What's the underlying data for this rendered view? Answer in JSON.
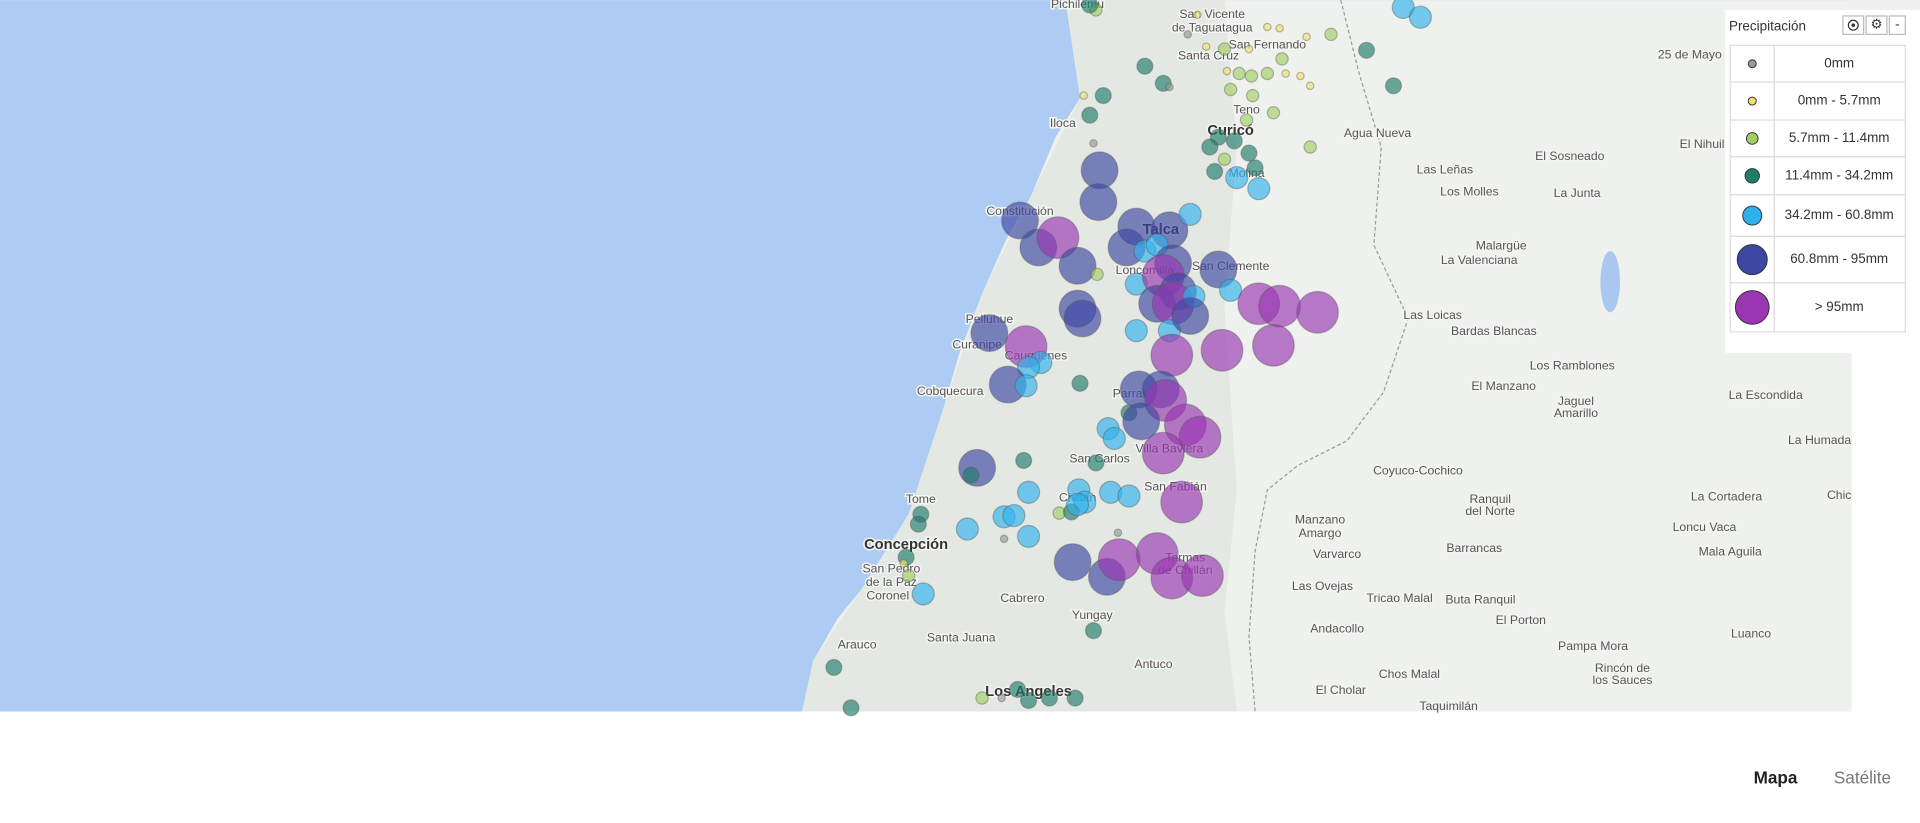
{
  "legend": {
    "title": "Precipitación",
    "collapse": "-",
    "items": [
      {
        "label": "0mm",
        "color": "#9a9a9a"
      },
      {
        "label": "0mm - 5.7mm",
        "color": "#f2e26b"
      },
      {
        "label": "5.7mm - 11.4mm",
        "color": "#a3cf62"
      },
      {
        "label": "11.4mm - 34.2mm",
        "color": "#1f7d6c"
      },
      {
        "label": "34.2mm - 60.8mm",
        "color": "#2fb2ec"
      },
      {
        "label": "60.8mm - 95mm",
        "color": "#3d47a3"
      },
      {
        "label": "> 95mm",
        "color": "#9a36b2"
      }
    ]
  },
  "map_types": [
    "Mapa",
    "Satélite"
  ],
  "places": [
    "Pichilemu",
    "San Vicente",
    "de Taguatagua",
    "San Fernando",
    "25 de Mayo",
    "Santa Cruz",
    "Teno",
    "Iloca",
    "Curicó",
    "Agua Nueva",
    "El Nihuil",
    "El Sosneado",
    "Las Leñas",
    "Molina",
    "Los Molles",
    "La Junta",
    "Constitución",
    "Talca",
    "Malargüe",
    "La Valenciana",
    "San Clemente",
    "Loncomilla",
    "Pelluhue",
    "Las Loicas",
    "Bardas Blancas",
    "Curanipe",
    "Cauquenes",
    "Los Ramblones",
    "El Manzano",
    "Cobquecura",
    "Parral",
    "La Escondida",
    "Jaguel",
    "Amarillo",
    "La Humada",
    "San Carlos",
    "Villa Baviera",
    "Coyuco-Cochico",
    "San Fabián",
    "Tome",
    "Chillán",
    "Ranquil",
    "del Norte",
    "La Cortadera",
    "Chic",
    "Manzano",
    "Amargo",
    "Loncu Vaca",
    "Concepción",
    "Barrancas",
    "Varvarco",
    "Mala Aguila",
    "San Pedro",
    "de la Paz",
    "Termas",
    "de Chillán",
    "Las Ovejas",
    "Tricao Malal",
    "Buta Ranquil",
    "Coronel",
    "Cabrero",
    "El Porton",
    "Yungay",
    "Andacollo",
    "Arauco",
    "Santa Juana",
    "Pampa Mora",
    "Luanco",
    "Rincón de",
    "los Sauces",
    "Antuco",
    "Chos Malal",
    "Los Angeles",
    "El Cholar",
    "Taquimilán"
  ]
}
